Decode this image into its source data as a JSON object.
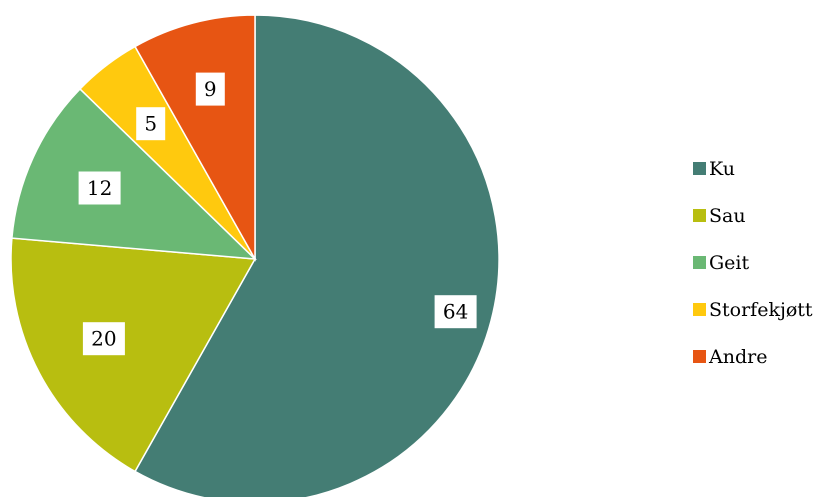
{
  "chart_data": {
    "type": "pie",
    "title": "",
    "start_angle_deg": 0,
    "direction": "clockwise",
    "slices": [
      {
        "label": "Ku",
        "value": 64,
        "color": "#447D74"
      },
      {
        "label": "Sau",
        "value": 20,
        "color": "#B8BE10"
      },
      {
        "label": "Geit",
        "value": 12,
        "color": "#6AB874"
      },
      {
        "label": "Storfekjøtt",
        "value": 5,
        "color": "#FFC90E"
      },
      {
        "label": "Andre",
        "value": 9,
        "color": "#E75513"
      }
    ],
    "data_labels": "inside",
    "legend": {
      "position": "right"
    }
  }
}
